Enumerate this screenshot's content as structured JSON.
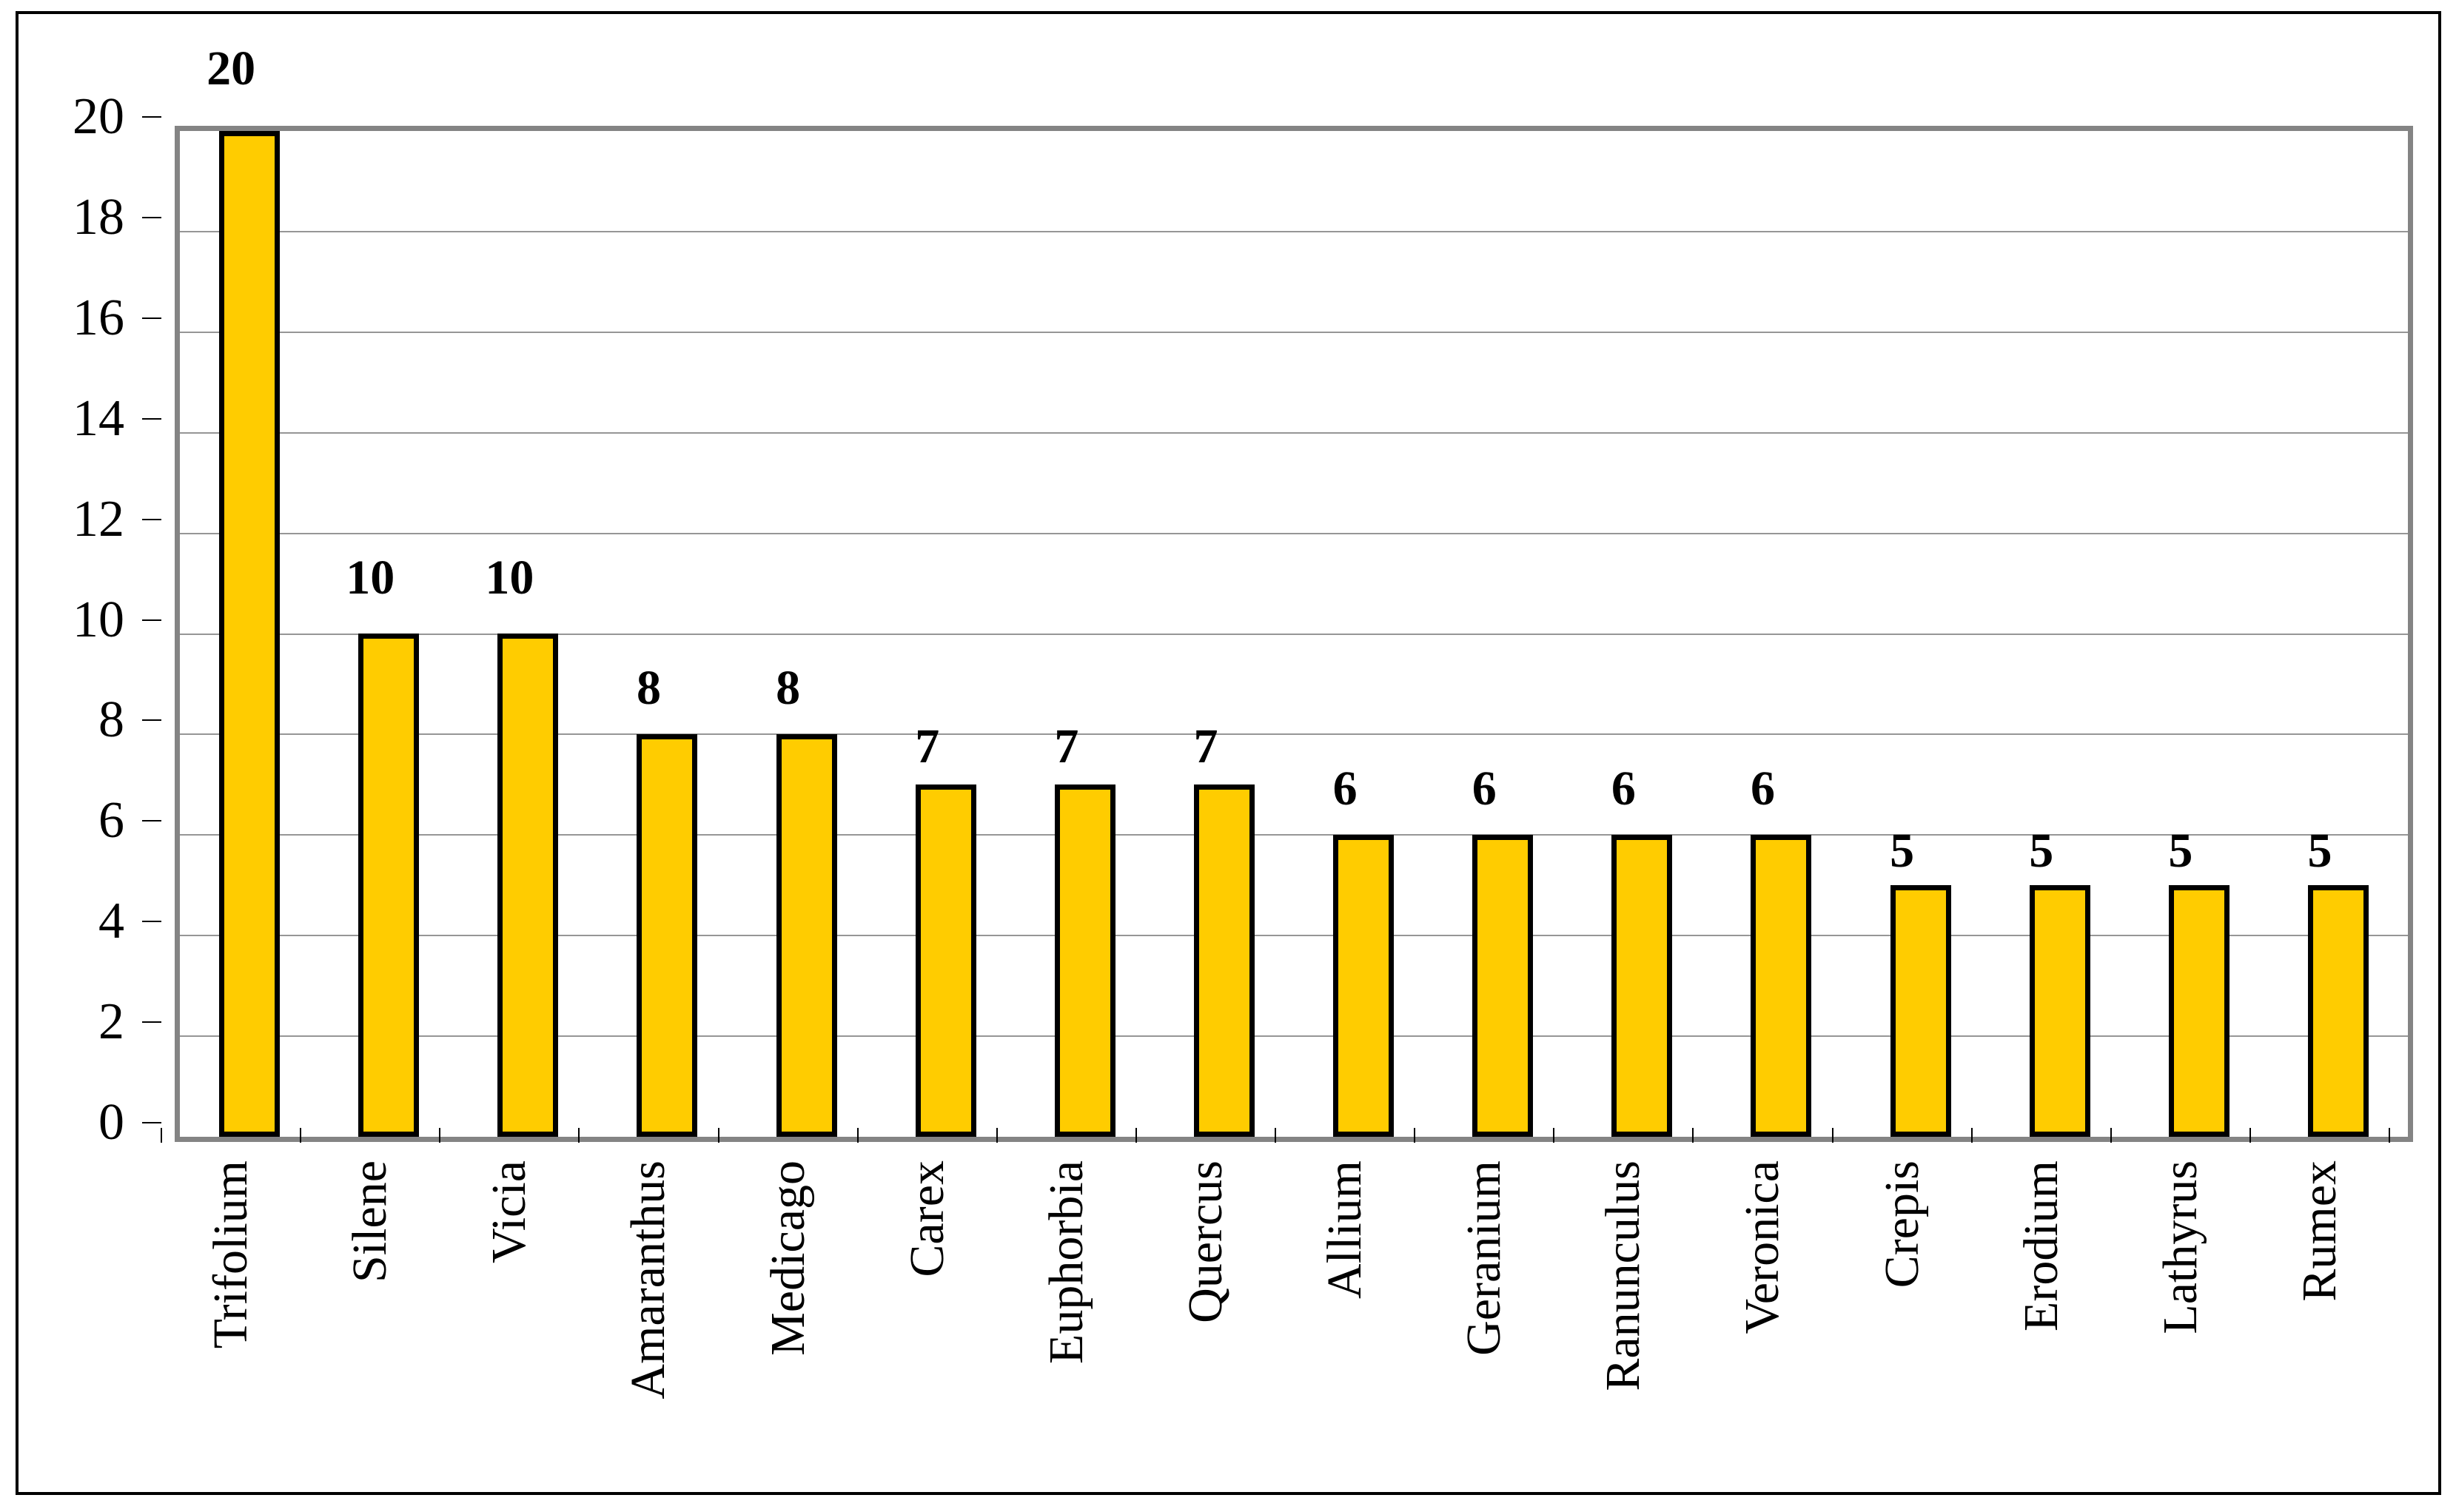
{
  "chart_data": {
    "type": "bar",
    "categories": [
      "Trifolium",
      "Silene",
      "Vicia",
      "Amaranthus",
      "Medicago",
      "Carex",
      "Euphorbia",
      "Quercus",
      "Allium",
      "Geranium",
      "Ranunculus",
      "Veronica",
      "Crepis",
      "Erodium",
      "Lathyrus",
      "Rumex"
    ],
    "values": [
      20,
      10,
      10,
      8,
      8,
      7,
      7,
      7,
      6,
      6,
      6,
      6,
      5,
      5,
      5,
      5
    ],
    "data_labels": [
      "20",
      "10",
      "10",
      "8",
      "8",
      "7",
      "7",
      "7",
      "6",
      "6",
      "6",
      "6",
      "5",
      "5",
      "5",
      "5"
    ],
    "title": "",
    "xlabel": "",
    "ylabel": "",
    "ylim": [
      0,
      20
    ],
    "ytick_step": 2,
    "ytick_labels": [
      "0",
      "2",
      "4",
      "6",
      "8",
      "10",
      "12",
      "14",
      "16",
      "18",
      "20"
    ],
    "grid": true,
    "legend": false,
    "colors": {
      "bar_fill": "#FFCC00",
      "bar_border": "#000000",
      "plot_border": "#848484",
      "gridline": "#969696",
      "tick": "#000000",
      "text": "#000000",
      "outer_frame": "#000000",
      "background": "#FFFFFF"
    }
  }
}
